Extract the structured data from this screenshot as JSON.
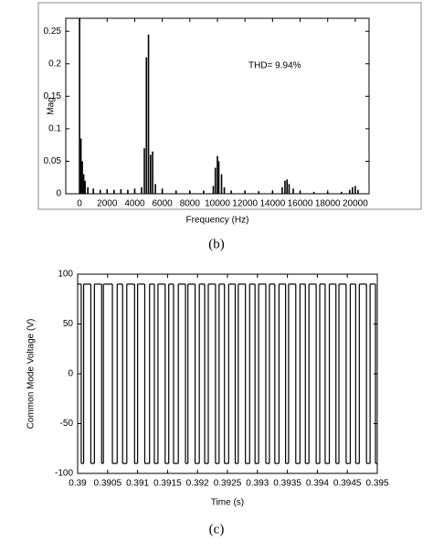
{
  "chart_data": [
    {
      "type": "bar",
      "caption": "(b)",
      "x_label": "Frequency (Hz)",
      "y_label": "Mag",
      "annotation": "THD= 9.94%",
      "color": "#000000",
      "x": [
        0,
        100,
        200,
        300,
        400,
        600,
        1000,
        1500,
        2000,
        2500,
        3000,
        3500,
        4000,
        4500,
        4700,
        4850,
        5000,
        5150,
        5300,
        5500,
        6000,
        7000,
        8000,
        9000,
        9700,
        9850,
        10000,
        10100,
        10300,
        10500,
        11000,
        12000,
        13000,
        14000,
        14700,
        14900,
        15050,
        15200,
        15500,
        16000,
        17000,
        18000,
        19000,
        19600,
        19800,
        20000,
        20200
      ],
      "values": [
        0.27,
        0.085,
        0.05,
        0.03,
        0.02,
        0.01,
        0.008,
        0.006,
        0.007,
        0.006,
        0.007,
        0.006,
        0.008,
        0.01,
        0.07,
        0.21,
        0.245,
        0.06,
        0.065,
        0.015,
        0.008,
        0.005,
        0.004,
        0.005,
        0.012,
        0.04,
        0.058,
        0.05,
        0.03,
        0.01,
        0.005,
        0.004,
        0.004,
        0.004,
        0.01,
        0.02,
        0.022,
        0.015,
        0.008,
        0.004,
        0.003,
        0.003,
        0.003,
        0.006,
        0.01,
        0.012,
        0.006
      ],
      "xlim": [
        -1000,
        21000
      ],
      "ylim": [
        0,
        0.27
      ],
      "xticks": [
        0,
        2000,
        4000,
        6000,
        8000,
        10000,
        12000,
        14000,
        16000,
        18000,
        20000
      ],
      "yticks": [
        0,
        0.05,
        0.1,
        0.15,
        0.2,
        0.25
      ]
    },
    {
      "type": "step",
      "caption": "(c)",
      "x_label": "Time (s)",
      "y_label": "Common Mode Voltage  (V)",
      "color": "#000000",
      "x": [
        0.39,
        0.39006,
        0.3901,
        0.39022,
        0.39028,
        0.3904,
        0.39043,
        0.39058,
        0.39066,
        0.39075,
        0.39082,
        0.39095,
        0.391,
        0.39112,
        0.3912,
        0.39128,
        0.39134,
        0.39146,
        0.39152,
        0.3916,
        0.39168,
        0.3918,
        0.39184,
        0.39196,
        0.39203,
        0.39212,
        0.39218,
        0.3923,
        0.39236,
        0.39245,
        0.39252,
        0.39263,
        0.39268,
        0.3928,
        0.39287,
        0.39296,
        0.39302,
        0.39314,
        0.3932,
        0.39329,
        0.39336,
        0.39347,
        0.39352,
        0.39364,
        0.39371,
        0.3938,
        0.39386,
        0.39398,
        0.39404,
        0.39413,
        0.3942,
        0.39431,
        0.39436,
        0.39448,
        0.39455,
        0.39464,
        0.3947,
        0.39482,
        0.39488,
        0.39497
      ],
      "values": [
        90,
        -90,
        90,
        -90,
        90,
        -90,
        90,
        -90,
        90,
        -90,
        90,
        -90,
        90,
        -90,
        90,
        -90,
        90,
        -90,
        90,
        -90,
        90,
        -90,
        90,
        -90,
        90,
        -90,
        90,
        -90,
        90,
        -90,
        90,
        -90,
        90,
        -90,
        90,
        -90,
        90,
        -90,
        90,
        -90,
        90,
        -90,
        90,
        -90,
        90,
        -90,
        90,
        -90,
        90,
        -90,
        90,
        -90,
        90,
        -90,
        90,
        -90,
        90,
        -90,
        90,
        -90
      ],
      "xlim": [
        0.39,
        0.395
      ],
      "ylim": [
        -100,
        100
      ],
      "xticks": [
        0.39,
        0.3905,
        0.391,
        0.3915,
        0.392,
        0.3925,
        0.393,
        0.3935,
        0.394,
        0.3945,
        0.395
      ],
      "yticks": [
        -100,
        -50,
        0,
        50,
        100
      ]
    }
  ]
}
